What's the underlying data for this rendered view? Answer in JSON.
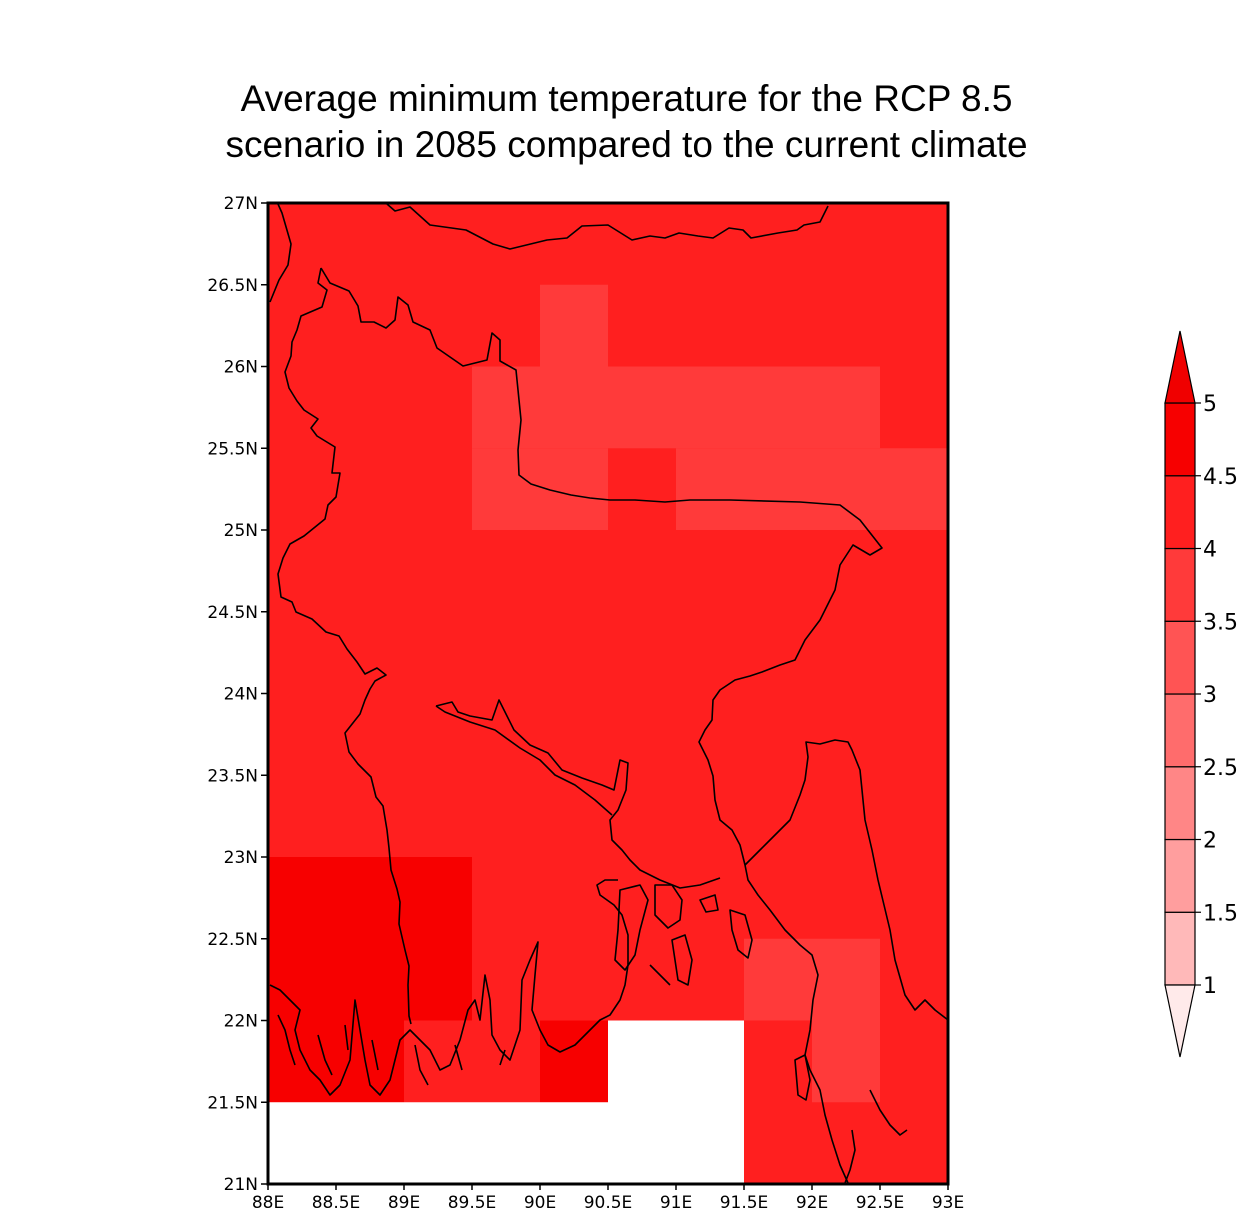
{
  "title": {
    "line1": "Average minimum temperature for the RCP 8.5",
    "line2": "scenario in 2085 compared to the current climate"
  },
  "map": {
    "lon_range": [
      88,
      93
    ],
    "lat_range": [
      21,
      27
    ],
    "cell_size_deg": 0.5,
    "base_value": "4-4.5",
    "x_ticks": [
      "88E",
      "88.5E",
      "89E",
      "89.5E",
      "90E",
      "90.5E",
      "91E",
      "91.5E",
      "92E",
      "92.5E",
      "93E"
    ],
    "y_ticks": [
      "21N",
      "21.5N",
      "22N",
      "22.5N",
      "23N",
      "23.5N",
      "24N",
      "24.5N",
      "25N",
      "25.5N",
      "26N",
      "26.5N",
      "27N"
    ],
    "cells": [
      {
        "lon": [
          90,
          90.5
        ],
        "lat": [
          26,
          26.5
        ],
        "value": "3.5-4"
      },
      {
        "lon": [
          89.5,
          92.5
        ],
        "lat": [
          25.5,
          26
        ],
        "value": "3.5-4"
      },
      {
        "lon": [
          89.5,
          90.5
        ],
        "lat": [
          25,
          25.5
        ],
        "value": "3.5-4"
      },
      {
        "lon": [
          91,
          93
        ],
        "lat": [
          25,
          25.5
        ],
        "value": "3.5-4"
      },
      {
        "lon": [
          88,
          89.5
        ],
        "lat": [
          22,
          23
        ],
        "value": "4.5-5"
      },
      {
        "lon": [
          88,
          89
        ],
        "lat": [
          21.5,
          22
        ],
        "value": "4.5-5"
      },
      {
        "lon": [
          90,
          90.5
        ],
        "lat": [
          21.5,
          22
        ],
        "value": "4.5-5"
      },
      {
        "lon": [
          91.5,
          92.5
        ],
        "lat": [
          22,
          22.5
        ],
        "value": "3.5-4"
      },
      {
        "lon": [
          92,
          92.5
        ],
        "lat": [
          21.5,
          22
        ],
        "value": "3.5-4"
      },
      {
        "lon": [
          90.5,
          91.5
        ],
        "lat": [
          21,
          22
        ],
        "value": "missing"
      },
      {
        "lon": [
          88,
          91.5
        ],
        "lat": [
          21,
          21.5
        ],
        "value": "missing"
      }
    ]
  },
  "colorbar": {
    "labels": [
      "1",
      "1.5",
      "2",
      "2.5",
      "3",
      "3.5",
      "4",
      "4.5",
      "5"
    ],
    "colors": [
      "#ffd4d4",
      "#ffb9b9",
      "#ff9e9e",
      "#ff8686",
      "#ff6c6c",
      "#ff5454",
      "#ff3a3a",
      "#ff1f1f",
      "#f70000"
    ],
    "below_color": "#ffeaea",
    "above_color": "#f00000"
  }
}
